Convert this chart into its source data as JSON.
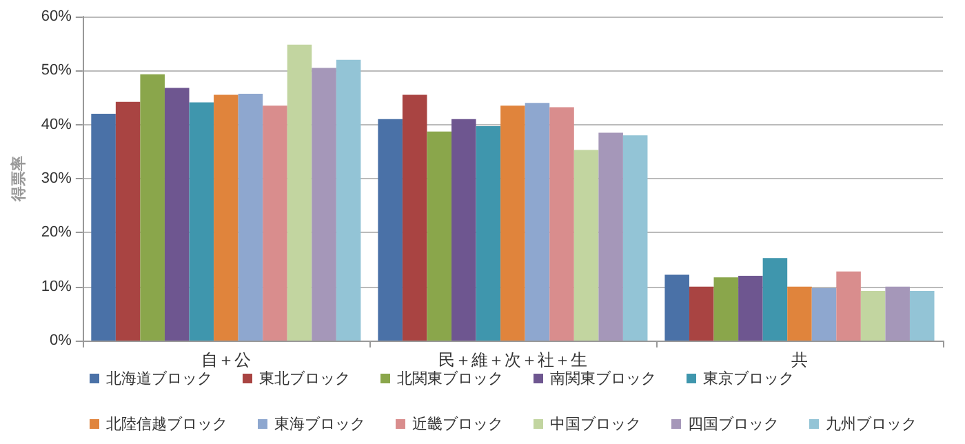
{
  "chart_data": {
    "type": "bar",
    "ylabel": "得票率",
    "categories": [
      "自＋公",
      "民＋維＋次＋社＋生",
      "共"
    ],
    "series": [
      {
        "name": "北海道ブロック",
        "color": "#4a71a7",
        "values": [
          42,
          41,
          12.2
        ]
      },
      {
        "name": "東北ブロック",
        "color": "#a94442",
        "values": [
          44.2,
          45.5,
          10
        ]
      },
      {
        "name": "北関東ブロック",
        "color": "#8aa64b",
        "values": [
          49.3,
          38.7,
          11.7
        ]
      },
      {
        "name": "南関東ブロック",
        "color": "#6e5690",
        "values": [
          46.8,
          41,
          12
        ]
      },
      {
        "name": "東京ブロック",
        "color": "#3f96ad",
        "values": [
          44.1,
          39.7,
          15.3
        ]
      },
      {
        "name": "北陸信越ブロック",
        "color": "#e0843c",
        "values": [
          45.5,
          43.5,
          10
        ]
      },
      {
        "name": "東海ブロック",
        "color": "#8ea7cf",
        "values": [
          45.7,
          44,
          9.7
        ]
      },
      {
        "name": "近畿ブロック",
        "color": "#d98d8d",
        "values": [
          43.5,
          43.2,
          12.8
        ]
      },
      {
        "name": "中国ブロック",
        "color": "#c2d5a0",
        "values": [
          54.8,
          35.3,
          9.2
        ]
      },
      {
        "name": "四国ブロック",
        "color": "#a597b9",
        "values": [
          50.5,
          38.5,
          10
        ]
      },
      {
        "name": "九州ブロック",
        "color": "#93c4d6",
        "values": [
          52,
          38,
          9.2
        ]
      }
    ],
    "ylim": [
      0,
      60
    ],
    "yticks": [
      {
        "value": 0,
        "label": "0%"
      },
      {
        "value": 10,
        "label": "10%"
      },
      {
        "value": 20,
        "label": "20%"
      },
      {
        "value": 30,
        "label": "30%"
      },
      {
        "value": 40,
        "label": "40%"
      },
      {
        "value": 50,
        "label": "50%"
      },
      {
        "value": 60,
        "label": "60%"
      }
    ],
    "grid": "y",
    "legend": "bottom"
  }
}
